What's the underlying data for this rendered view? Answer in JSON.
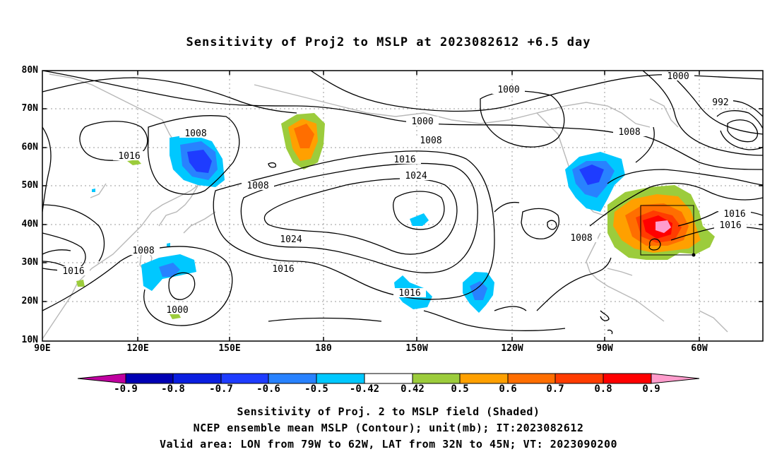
{
  "title": "Sensitivity of Proj2 to MSLP at 2023082612 +6.5 day",
  "map": {
    "lat_labels": [
      "80N",
      "70N",
      "60N",
      "50N",
      "40N",
      "30N",
      "20N",
      "10N"
    ],
    "lon_labels": [
      "90E",
      "120E",
      "150E",
      "180",
      "150W",
      "120W",
      "90W",
      "60W"
    ],
    "contour_labels": [
      "1000",
      "1008",
      "1016",
      "1000",
      "992",
      "1008",
      "1000",
      "1008",
      "1016",
      "1024",
      "1008",
      "1024",
      "1016",
      "1008",
      "1016",
      "1000",
      "1016",
      "1016",
      "1008",
      "1016"
    ],
    "valid_box": {
      "lon_from": "79W",
      "lon_to": "62W",
      "lat_from": "32N",
      "lat_to": "45N"
    }
  },
  "colorbar": {
    "labels": [
      "-0.9",
      "-0.8",
      "-0.7",
      "-0.6",
      "-0.5",
      "-0.42",
      "0.42",
      "0.5",
      "0.6",
      "0.7",
      "0.8",
      "0.9"
    ],
    "colors": [
      "#c000a0",
      "#0000b4",
      "#0a1ee0",
      "#1e3cff",
      "#2882ff",
      "#00c8ff",
      "#ffffff",
      "#9ccc3c",
      "#ffa000",
      "#ff6e00",
      "#ff3c00",
      "#ff0000",
      "#ff9ccc"
    ]
  },
  "captions": [
    "Sensitivity of Proj. 2 to MSLP field (Shaded)",
    "NCEP ensemble mean MSLP (Contour); unit(mb); IT:2023082612",
    "Valid area: LON from 79W to 62W, LAT from 32N to 45N; VT: 2023090200"
  ]
}
